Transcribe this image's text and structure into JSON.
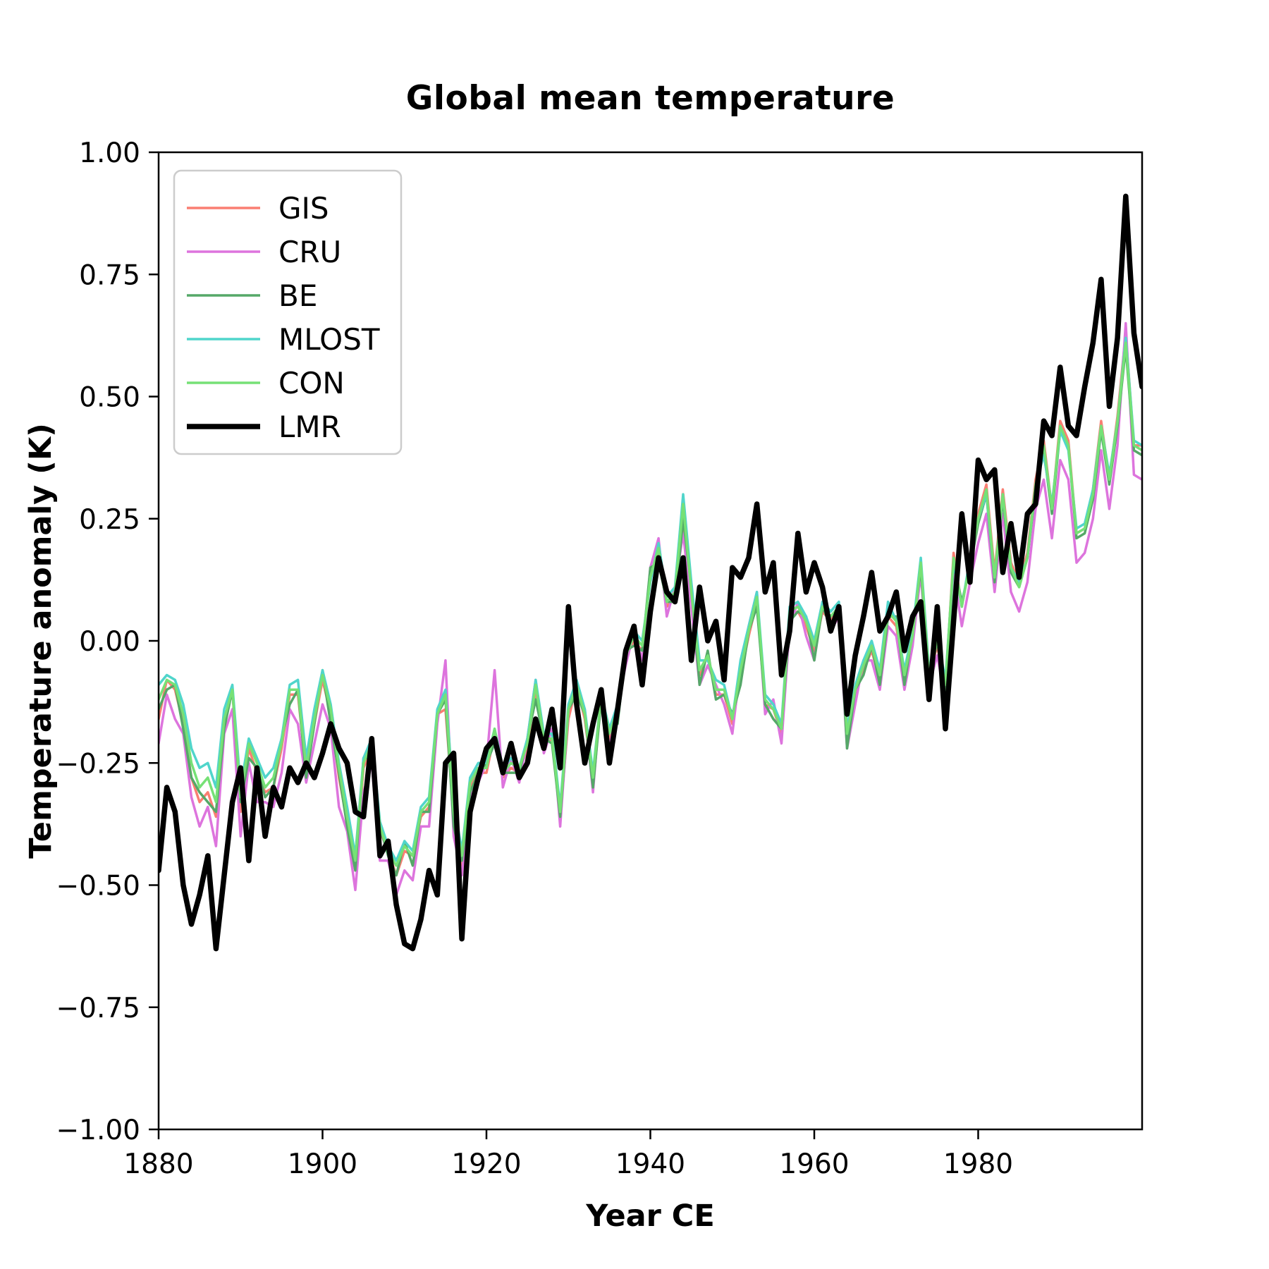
{
  "figure": {
    "title": "Global mean temperature"
  },
  "axes": {
    "xlabel": "Year CE",
    "ylabel": "Temperature anomaly (K)",
    "x_ticks": [
      1880,
      1900,
      1920,
      1940,
      1960,
      1980
    ],
    "x_tick_labels": [
      "1880",
      "1900",
      "1920",
      "1940",
      "1960",
      "1980"
    ],
    "y_ticks": [
      -1.0,
      -0.75,
      -0.5,
      -0.25,
      0.0,
      0.25,
      0.5,
      0.75,
      1.0
    ],
    "y_tick_labels": [
      "−1.00",
      "−0.75",
      "−0.50",
      "−0.25",
      "0.00",
      "0.25",
      "0.50",
      "0.75",
      "1.00"
    ]
  },
  "legend": {
    "position": "upper left",
    "border_color": "#cccccc",
    "background": "#ffffff"
  },
  "chart_data": {
    "type": "line",
    "title": "Global mean temperature",
    "xlabel": "Year CE",
    "ylabel": "Temperature anomaly (K)",
    "x_start": 1880,
    "x_step": 1,
    "x_end": 2000,
    "xlim": [
      1880,
      2000
    ],
    "ylim": [
      -1.0,
      1.0
    ],
    "grid": false,
    "legend_position": "upper left",
    "series": [
      {
        "name": "GIS",
        "color": "#fa7e72",
        "linewidth": 3.5,
        "values": [
          -0.16,
          -0.08,
          -0.1,
          -0.17,
          -0.28,
          -0.33,
          -0.31,
          -0.36,
          -0.17,
          -0.1,
          -0.35,
          -0.22,
          -0.27,
          -0.31,
          -0.3,
          -0.22,
          -0.11,
          -0.11,
          -0.27,
          -0.17,
          -0.08,
          -0.15,
          -0.28,
          -0.37,
          -0.47,
          -0.26,
          -0.22,
          -0.39,
          -0.43,
          -0.48,
          -0.43,
          -0.44,
          -0.36,
          -0.34,
          -0.15,
          -0.14,
          -0.36,
          -0.46,
          -0.3,
          -0.27,
          -0.27,
          -0.19,
          -0.28,
          -0.26,
          -0.27,
          -0.22,
          -0.1,
          -0.21,
          -0.2,
          -0.36,
          -0.16,
          -0.09,
          -0.16,
          -0.29,
          -0.12,
          -0.2,
          -0.15,
          -0.03,
          0.0,
          -0.02,
          0.13,
          0.18,
          0.07,
          0.09,
          0.24,
          0.09,
          -0.07,
          -0.03,
          -0.11,
          -0.11,
          -0.17,
          -0.07,
          0.01,
          0.08,
          -0.13,
          -0.14,
          -0.19,
          0.05,
          0.06,
          0.03,
          -0.02,
          0.06,
          0.04,
          0.07,
          -0.2,
          -0.11,
          -0.06,
          -0.02,
          -0.08,
          0.05,
          0.03,
          -0.08,
          0.01,
          0.16,
          -0.07,
          -0.01,
          -0.1,
          0.18,
          0.07,
          0.16,
          0.26,
          0.32,
          0.14,
          0.31,
          0.16,
          0.12,
          0.18,
          0.33,
          0.41,
          0.27,
          0.45,
          0.41,
          0.22,
          0.23,
          0.31,
          0.45,
          0.33,
          0.46,
          0.63,
          0.4,
          0.4
        ]
      },
      {
        "name": "CRU",
        "color": "#dd74dd",
        "linewidth": 3.5,
        "values": [
          -0.21,
          -0.11,
          -0.16,
          -0.19,
          -0.32,
          -0.38,
          -0.34,
          -0.42,
          -0.19,
          -0.14,
          -0.4,
          -0.25,
          -0.33,
          -0.33,
          -0.34,
          -0.27,
          -0.14,
          -0.17,
          -0.29,
          -0.21,
          -0.13,
          -0.18,
          -0.34,
          -0.39,
          -0.51,
          -0.31,
          -0.25,
          -0.45,
          -0.45,
          -0.52,
          -0.47,
          -0.49,
          -0.38,
          -0.38,
          -0.17,
          -0.04,
          -0.4,
          -0.48,
          -0.32,
          -0.29,
          -0.25,
          -0.06,
          -0.3,
          -0.24,
          -0.29,
          -0.2,
          -0.08,
          -0.23,
          -0.18,
          -0.38,
          -0.14,
          -0.11,
          -0.14,
          -0.31,
          -0.1,
          -0.22,
          -0.13,
          -0.05,
          0.02,
          -0.04,
          0.15,
          0.21,
          0.05,
          0.11,
          0.22,
          0.07,
          -0.09,
          -0.05,
          -0.09,
          -0.13,
          -0.19,
          -0.05,
          0.03,
          0.1,
          -0.15,
          -0.12,
          -0.21,
          0.03,
          0.08,
          0.01,
          -0.04,
          0.08,
          0.02,
          0.05,
          -0.22,
          -0.13,
          -0.04,
          -0.04,
          -0.1,
          0.03,
          0.01,
          -0.1,
          -0.01,
          0.14,
          -0.09,
          -0.03,
          -0.12,
          0.14,
          0.03,
          0.12,
          0.2,
          0.26,
          0.1,
          0.26,
          0.1,
          0.06,
          0.12,
          0.27,
          0.33,
          0.21,
          0.37,
          0.33,
          0.16,
          0.18,
          0.25,
          0.39,
          0.27,
          0.4,
          0.65,
          0.34,
          0.33
        ]
      },
      {
        "name": "BE",
        "color": "#55a868",
        "linewidth": 3.5,
        "values": [
          -0.14,
          -0.1,
          -0.09,
          -0.18,
          -0.28,
          -0.31,
          -0.33,
          -0.35,
          -0.18,
          -0.1,
          -0.33,
          -0.24,
          -0.26,
          -0.32,
          -0.3,
          -0.2,
          -0.13,
          -0.1,
          -0.28,
          -0.17,
          -0.06,
          -0.17,
          -0.27,
          -0.38,
          -0.47,
          -0.24,
          -0.24,
          -0.38,
          -0.44,
          -0.48,
          -0.41,
          -0.46,
          -0.35,
          -0.35,
          -0.15,
          -0.12,
          -0.38,
          -0.45,
          -0.31,
          -0.27,
          -0.25,
          -0.21,
          -0.27,
          -0.27,
          -0.27,
          -0.2,
          -0.12,
          -0.2,
          -0.21,
          -0.36,
          -0.14,
          -0.11,
          -0.15,
          -0.3,
          -0.12,
          -0.18,
          -0.17,
          -0.02,
          -0.01,
          -0.02,
          0.15,
          0.16,
          0.08,
          0.08,
          0.25,
          0.11,
          -0.09,
          -0.02,
          -0.12,
          -0.11,
          -0.15,
          -0.09,
          0.02,
          0.07,
          -0.13,
          -0.16,
          -0.18,
          0.04,
          0.06,
          0.05,
          -0.04,
          0.07,
          0.03,
          0.07,
          -0.22,
          -0.1,
          -0.07,
          -0.01,
          -0.09,
          0.05,
          0.05,
          -0.09,
          0.02,
          0.15,
          -0.08,
          0.0,
          -0.11,
          0.16,
          0.08,
          0.15,
          0.24,
          0.3,
          0.12,
          0.29,
          0.14,
          0.11,
          0.17,
          0.31,
          0.39,
          0.26,
          0.43,
          0.4,
          0.21,
          0.22,
          0.29,
          0.43,
          0.32,
          0.44,
          0.6,
          0.39,
          0.38
        ]
      },
      {
        "name": "MLOST",
        "color": "#50d5cb",
        "linewidth": 3.5,
        "values": [
          -0.09,
          -0.07,
          -0.08,
          -0.13,
          -0.22,
          -0.26,
          -0.25,
          -0.3,
          -0.14,
          -0.09,
          -0.3,
          -0.2,
          -0.24,
          -0.28,
          -0.26,
          -0.2,
          -0.09,
          -0.08,
          -0.24,
          -0.14,
          -0.06,
          -0.13,
          -0.25,
          -0.34,
          -0.44,
          -0.24,
          -0.2,
          -0.37,
          -0.42,
          -0.45,
          -0.41,
          -0.43,
          -0.34,
          -0.32,
          -0.14,
          -0.1,
          -0.33,
          -0.43,
          -0.28,
          -0.25,
          -0.25,
          -0.18,
          -0.26,
          -0.24,
          -0.26,
          -0.2,
          -0.08,
          -0.19,
          -0.19,
          -0.34,
          -0.13,
          -0.08,
          -0.14,
          -0.27,
          -0.11,
          -0.18,
          -0.13,
          -0.02,
          0.02,
          0.0,
          0.12,
          0.2,
          0.09,
          0.11,
          0.3,
          0.12,
          -0.04,
          -0.04,
          -0.08,
          -0.09,
          -0.16,
          -0.04,
          0.03,
          0.1,
          -0.11,
          -0.13,
          -0.17,
          0.07,
          0.08,
          0.05,
          0.0,
          0.08,
          0.06,
          0.08,
          -0.18,
          -0.09,
          -0.04,
          0.0,
          -0.06,
          0.08,
          0.04,
          -0.06,
          0.02,
          0.17,
          -0.06,
          0.01,
          -0.08,
          0.16,
          0.07,
          0.17,
          0.25,
          0.3,
          0.13,
          0.3,
          0.15,
          0.12,
          0.17,
          0.32,
          0.38,
          0.28,
          0.43,
          0.39,
          0.23,
          0.24,
          0.31,
          0.44,
          0.34,
          0.45,
          0.62,
          0.41,
          0.4
        ]
      },
      {
        "name": "CON",
        "color": "#76e176",
        "linewidth": 3.5,
        "values": [
          -0.12,
          -0.08,
          -0.09,
          -0.15,
          -0.25,
          -0.3,
          -0.28,
          -0.33,
          -0.16,
          -0.1,
          -0.32,
          -0.21,
          -0.25,
          -0.3,
          -0.28,
          -0.21,
          -0.1,
          -0.1,
          -0.26,
          -0.16,
          -0.07,
          -0.14,
          -0.26,
          -0.36,
          -0.45,
          -0.25,
          -0.21,
          -0.38,
          -0.43,
          -0.46,
          -0.42,
          -0.44,
          -0.35,
          -0.33,
          -0.15,
          -0.11,
          -0.35,
          -0.44,
          -0.29,
          -0.26,
          -0.26,
          -0.18,
          -0.27,
          -0.25,
          -0.26,
          -0.21,
          -0.09,
          -0.2,
          -0.2,
          -0.35,
          -0.14,
          -0.09,
          -0.15,
          -0.28,
          -0.11,
          -0.19,
          -0.14,
          -0.03,
          0.01,
          -0.01,
          0.13,
          0.19,
          0.08,
          0.1,
          0.28,
          0.1,
          -0.06,
          -0.03,
          -0.1,
          -0.1,
          -0.16,
          -0.06,
          0.02,
          0.09,
          -0.12,
          -0.14,
          -0.18,
          0.06,
          0.07,
          0.04,
          -0.01,
          0.07,
          0.05,
          0.07,
          -0.19,
          -0.1,
          -0.05,
          -0.01,
          -0.07,
          0.06,
          0.04,
          -0.07,
          0.01,
          0.16,
          -0.07,
          0.0,
          -0.09,
          0.17,
          0.07,
          0.16,
          0.25,
          0.31,
          0.13,
          0.3,
          0.15,
          0.11,
          0.17,
          0.32,
          0.4,
          0.27,
          0.44,
          0.4,
          0.22,
          0.23,
          0.3,
          0.44,
          0.33,
          0.45,
          0.61,
          0.4,
          0.39
        ]
      },
      {
        "name": "LMR",
        "color": "#000000",
        "linewidth": 7.5,
        "values": [
          -0.47,
          -0.3,
          -0.35,
          -0.5,
          -0.58,
          -0.52,
          -0.44,
          -0.63,
          -0.48,
          -0.33,
          -0.26,
          -0.45,
          -0.26,
          -0.4,
          -0.3,
          -0.34,
          -0.26,
          -0.29,
          -0.25,
          -0.28,
          -0.23,
          -0.17,
          -0.22,
          -0.25,
          -0.35,
          -0.36,
          -0.2,
          -0.44,
          -0.41,
          -0.54,
          -0.62,
          -0.63,
          -0.57,
          -0.47,
          -0.52,
          -0.25,
          -0.23,
          -0.61,
          -0.35,
          -0.28,
          -0.22,
          -0.2,
          -0.27,
          -0.21,
          -0.28,
          -0.25,
          -0.16,
          -0.22,
          -0.14,
          -0.26,
          0.07,
          -0.13,
          -0.25,
          -0.17,
          -0.1,
          -0.25,
          -0.14,
          -0.02,
          0.03,
          -0.09,
          0.06,
          0.17,
          0.1,
          0.08,
          0.17,
          -0.04,
          0.11,
          0.0,
          0.04,
          -0.08,
          0.15,
          0.13,
          0.17,
          0.28,
          0.1,
          0.16,
          -0.07,
          0.02,
          0.22,
          0.1,
          0.16,
          0.11,
          0.02,
          0.07,
          -0.15,
          -0.03,
          0.05,
          0.14,
          0.02,
          0.05,
          0.1,
          -0.02,
          0.05,
          0.08,
          -0.12,
          0.07,
          -0.18,
          0.04,
          0.26,
          0.12,
          0.37,
          0.33,
          0.35,
          0.14,
          0.24,
          0.13,
          0.26,
          0.28,
          0.45,
          0.42,
          0.56,
          0.44,
          0.42,
          0.52,
          0.61,
          0.74,
          0.48,
          0.62,
          0.91,
          0.63,
          0.52
        ]
      }
    ]
  }
}
